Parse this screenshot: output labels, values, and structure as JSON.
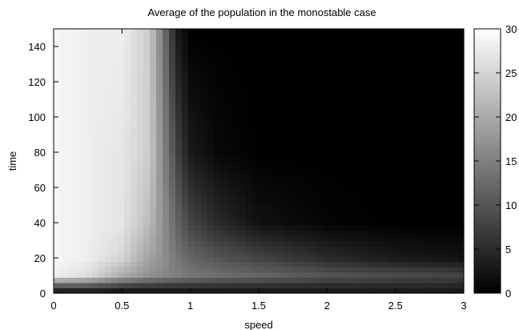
{
  "chart_data": {
    "type": "heatmap",
    "title": "Average of the population in the monostable case",
    "xlabel": "speed",
    "ylabel": "time",
    "xlim": [
      0,
      3
    ],
    "ylim": [
      0,
      150
    ],
    "x_ticks": [
      "0",
      "0.5",
      "1",
      "1.5",
      "2",
      "2.5",
      "3"
    ],
    "y_ticks": [
      "0",
      "20",
      "40",
      "60",
      "80",
      "100",
      "120",
      "140"
    ],
    "colorbar": {
      "range": [
        0,
        30
      ],
      "ticks": [
        "0",
        "5",
        "10",
        "15",
        "20",
        "25",
        "30"
      ],
      "colormap": "grayscale"
    },
    "grid": false,
    "z_description": "average population as a function of speed (x) and time (y)",
    "speed_samples": [
      0,
      0.25,
      0.5,
      0.7,
      0.8,
      0.9,
      1.0,
      1.2,
      1.5,
      2.0,
      2.5,
      3.0
    ],
    "time_samples": [
      2,
      10,
      20,
      40,
      80,
      150
    ],
    "values": [
      [
        4,
        4,
        3,
        3,
        3,
        3,
        3,
        3,
        3,
        3,
        3,
        3
      ],
      [
        28,
        26,
        20,
        17,
        16,
        15,
        14,
        13,
        12,
        10,
        9,
        8
      ],
      [
        29,
        28,
        25,
        19,
        17,
        14,
        12,
        10,
        8,
        5,
        3,
        2
      ],
      [
        29,
        28,
        27,
        22,
        17,
        12,
        8,
        5,
        2,
        0.5,
        0,
        0
      ],
      [
        29,
        28,
        27,
        24,
        16,
        8,
        3,
        1,
        0,
        0,
        0,
        0
      ],
      [
        29,
        28,
        28,
        24,
        14,
        3,
        0,
        0,
        0,
        0,
        0,
        0
      ]
    ],
    "colors": {
      "low": "#000000",
      "high": "#ffffff",
      "frame": "#000000"
    }
  }
}
